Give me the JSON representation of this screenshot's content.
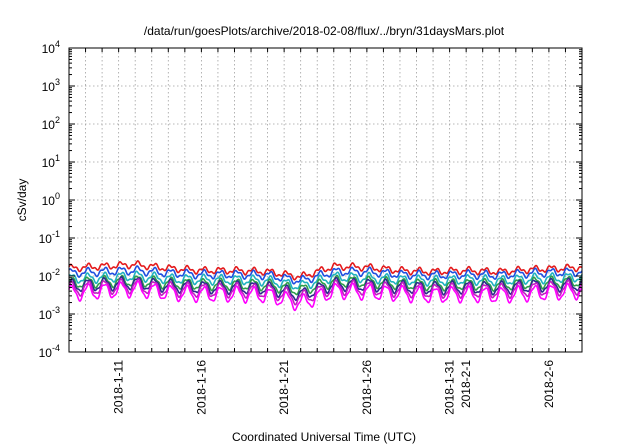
{
  "chart_data": {
    "type": "line",
    "title": "/data/run/goesPlots/archive/2018-02-08/flux/../bryn/31daysMars.plot",
    "xlabel": "Coordinated Universal Time (UTC)",
    "ylabel": "cSv/day",
    "y_scale": "log",
    "ylim": [
      0.0001,
      10000
    ],
    "xlim": [
      "2018-01-08",
      "2018-02-08"
    ],
    "grid": true,
    "legend": "none",
    "y_ticks": [
      {
        "base": "10",
        "exp": "-4"
      },
      {
        "base": "10",
        "exp": "-3"
      },
      {
        "base": "10",
        "exp": "-2"
      },
      {
        "base": "10",
        "exp": "-1"
      },
      {
        "base": "10",
        "exp": "0"
      },
      {
        "base": "10",
        "exp": "1"
      },
      {
        "base": "10",
        "exp": "2"
      },
      {
        "base": "10",
        "exp": "3"
      },
      {
        "base": "10",
        "exp": "4"
      }
    ],
    "x_ticks": [
      {
        "date": "2018-01-11",
        "label": "2018-1-11"
      },
      {
        "date": "2018-01-16",
        "label": "2018-1-16"
      },
      {
        "date": "2018-01-21",
        "label": "2018-1-21"
      },
      {
        "date": "2018-01-26",
        "label": "2018-1-26"
      },
      {
        "date": "2018-01-31",
        "label": "2018-1-31"
      },
      {
        "date": "2018-02-01",
        "label": "2018-2-1"
      },
      {
        "date": "2018-02-06",
        "label": "2018-2-6"
      }
    ],
    "series": [
      {
        "color": "#e41a1c",
        "x": [
          "2018-01-08",
          "2018-01-10",
          "2018-01-12",
          "2018-01-14",
          "2018-01-16",
          "2018-01-18",
          "2018-01-20",
          "2018-01-22",
          "2018-01-24",
          "2018-01-26",
          "2018-01-28",
          "2018-01-30",
          "2018-02-01",
          "2018-02-03",
          "2018-02-05",
          "2018-02-07",
          "2018-02-08"
        ],
        "y": [
          0.016,
          0.018,
          0.02,
          0.016,
          0.014,
          0.014,
          0.013,
          0.0095,
          0.018,
          0.017,
          0.014,
          0.013,
          0.014,
          0.013,
          0.015,
          0.016,
          0.017
        ]
      },
      {
        "color": "#1f4fe0",
        "x": [
          "2018-01-08",
          "2018-01-10",
          "2018-01-12",
          "2018-01-14",
          "2018-01-16",
          "2018-01-18",
          "2018-01-20",
          "2018-01-22",
          "2018-01-24",
          "2018-01-26",
          "2018-01-28",
          "2018-01-30",
          "2018-02-01",
          "2018-02-03",
          "2018-02-05",
          "2018-02-07",
          "2018-02-08"
        ],
        "y": [
          0.012,
          0.013,
          0.014,
          0.012,
          0.011,
          0.011,
          0.0105,
          0.0075,
          0.013,
          0.013,
          0.011,
          0.0105,
          0.011,
          0.0105,
          0.012,
          0.0125,
          0.013
        ]
      },
      {
        "color": "#20b2c0",
        "x": [
          "2018-01-08",
          "2018-01-10",
          "2018-01-12",
          "2018-01-14",
          "2018-01-16",
          "2018-01-18",
          "2018-01-20",
          "2018-01-22",
          "2018-01-24",
          "2018-01-26",
          "2018-01-28",
          "2018-01-30",
          "2018-02-01",
          "2018-02-03",
          "2018-02-05",
          "2018-02-07",
          "2018-02-08"
        ],
        "y": [
          0.0085,
          0.009,
          0.01,
          0.0085,
          0.008,
          0.008,
          0.0075,
          0.0055,
          0.0095,
          0.009,
          0.008,
          0.0075,
          0.008,
          0.0075,
          0.0085,
          0.009,
          0.0095
        ]
      },
      {
        "color": "#2e9e4a",
        "x": [
          "2018-01-08",
          "2018-01-10",
          "2018-01-12",
          "2018-01-14",
          "2018-01-16",
          "2018-01-18",
          "2018-01-20",
          "2018-01-22",
          "2018-01-24",
          "2018-01-26",
          "2018-01-28",
          "2018-01-30",
          "2018-02-01",
          "2018-02-03",
          "2018-02-05",
          "2018-02-07",
          "2018-02-08"
        ],
        "y": [
          0.0065,
          0.007,
          0.0075,
          0.0065,
          0.006,
          0.006,
          0.0058,
          0.0042,
          0.0072,
          0.007,
          0.0062,
          0.0058,
          0.006,
          0.0058,
          0.0065,
          0.007,
          0.0072
        ]
      },
      {
        "color": "#2b2b8c",
        "x": [
          "2018-01-08",
          "2018-01-10",
          "2018-01-12",
          "2018-01-14",
          "2018-01-16",
          "2018-01-18",
          "2018-01-20",
          "2018-01-22",
          "2018-01-24",
          "2018-01-26",
          "2018-01-28",
          "2018-01-30",
          "2018-02-01",
          "2018-02-03",
          "2018-02-05",
          "2018-02-07",
          "2018-02-08"
        ],
        "y": [
          0.0055,
          0.006,
          0.0065,
          0.0055,
          0.005,
          0.005,
          0.0048,
          0.0032,
          0.006,
          0.0058,
          0.0052,
          0.0048,
          0.005,
          0.0048,
          0.0055,
          0.0058,
          0.006
        ]
      },
      {
        "color": "#c020c0",
        "x": [
          "2018-01-08",
          "2018-01-10",
          "2018-01-12",
          "2018-01-14",
          "2018-01-16",
          "2018-01-18",
          "2018-01-20",
          "2018-01-22",
          "2018-01-24",
          "2018-01-26",
          "2018-01-28",
          "2018-01-30",
          "2018-02-01",
          "2018-02-03",
          "2018-02-05",
          "2018-02-07",
          "2018-02-08"
        ],
        "y": [
          0.0045,
          0.005,
          0.0055,
          0.0045,
          0.0042,
          0.0042,
          0.004,
          0.0026,
          0.005,
          0.0048,
          0.0043,
          0.004,
          0.0042,
          0.004,
          0.0045,
          0.0048,
          0.005
        ]
      },
      {
        "color": "#ff00ff",
        "x": [
          "2018-01-08",
          "2018-01-10",
          "2018-01-12",
          "2018-01-14",
          "2018-01-16",
          "2018-01-18",
          "2018-01-20",
          "2018-01-22",
          "2018-01-24",
          "2018-01-26",
          "2018-01-28",
          "2018-01-30",
          "2018-02-01",
          "2018-02-03",
          "2018-02-05",
          "2018-02-07",
          "2018-02-08"
        ],
        "y": [
          0.0035,
          0.004,
          0.0045,
          0.0036,
          0.0033,
          0.0033,
          0.0031,
          0.0019,
          0.004,
          0.0038,
          0.0034,
          0.0031,
          0.0033,
          0.0031,
          0.0035,
          0.0038,
          0.004
        ]
      }
    ]
  }
}
